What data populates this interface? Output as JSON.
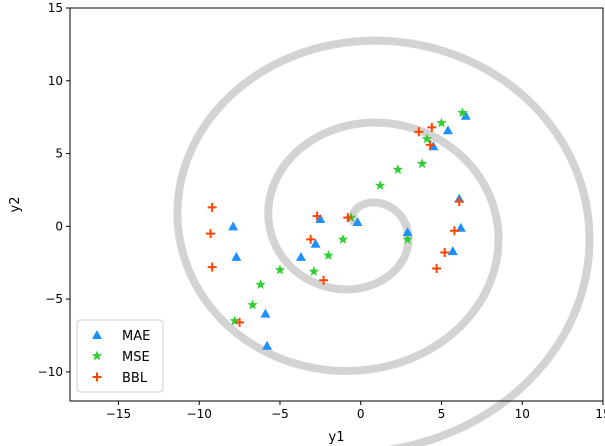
{
  "chart_data": {
    "type": "scatter",
    "title": "",
    "xlabel": "y1",
    "ylabel": "y2",
    "xlim": [
      -18,
      15
    ],
    "ylim": [
      -12,
      15
    ],
    "xticks": [
      -15,
      -10,
      -5,
      0,
      5,
      10,
      15
    ],
    "yticks": [
      -10,
      -5,
      0,
      5,
      10,
      15
    ],
    "xtick_labels": [
      "−15",
      "−10",
      "−5",
      "0",
      "5",
      "10",
      "15"
    ],
    "ytick_labels": [
      "−10",
      "−5",
      "0",
      "5",
      "10",
      "15"
    ],
    "grid": false,
    "legend_position": "bottom-left",
    "background_curve": {
      "type": "spiral",
      "color": "#d3d3d3",
      "description_of_shape": "Archimedean spiral r = 0.9*theta, outer end near (-15.7, 0)",
      "theta_range": [
        0.6,
        17.4
      ],
      "r_per_rad": 0.9
    },
    "series": [
      {
        "name": "MAE",
        "marker": "triangle",
        "color": "#1e90ff",
        "points": [
          [
            6.5,
            7.6
          ],
          [
            5.4,
            6.6
          ],
          [
            4.5,
            5.5
          ],
          [
            6.1,
            1.9
          ],
          [
            6.2,
            -0.1
          ],
          [
            5.7,
            -1.7
          ],
          [
            2.9,
            -0.4
          ],
          [
            -0.2,
            0.3
          ],
          [
            -2.5,
            0.5
          ],
          [
            -2.8,
            -1.2
          ],
          [
            -3.7,
            -2.1
          ],
          [
            -7.9,
            0.0
          ],
          [
            -7.7,
            -2.1
          ],
          [
            -5.9,
            -6.0
          ],
          [
            -5.8,
            -8.2
          ]
        ]
      },
      {
        "name": "MSE",
        "marker": "star",
        "color": "#32cd32",
        "points": [
          [
            6.3,
            7.8
          ],
          [
            5.0,
            7.1
          ],
          [
            4.1,
            6.0
          ],
          [
            3.8,
            4.3
          ],
          [
            2.3,
            3.9
          ],
          [
            1.2,
            2.8
          ],
          [
            -0.6,
            0.6
          ],
          [
            -1.1,
            -0.9
          ],
          [
            -2.0,
            -2.0
          ],
          [
            -2.9,
            -3.1
          ],
          [
            -5.0,
            -3.0
          ],
          [
            -6.2,
            -4.0
          ],
          [
            -6.7,
            -5.4
          ],
          [
            -7.8,
            -6.5
          ],
          [
            2.9,
            -0.9
          ]
        ]
      },
      {
        "name": "BBL",
        "marker": "plus",
        "color": "#ff4500",
        "points": [
          [
            3.6,
            6.5
          ],
          [
            4.4,
            6.8
          ],
          [
            4.3,
            5.6
          ],
          [
            6.1,
            1.7
          ],
          [
            5.8,
            -0.3
          ],
          [
            5.2,
            -1.8
          ],
          [
            4.7,
            -2.9
          ],
          [
            -0.8,
            0.6
          ],
          [
            -2.7,
            0.7
          ],
          [
            -3.1,
            -0.9
          ],
          [
            -2.3,
            -3.7
          ],
          [
            -9.2,
            1.3
          ],
          [
            -9.3,
            -0.5
          ],
          [
            -9.2,
            -2.8
          ],
          [
            -7.5,
            -6.6
          ]
        ]
      }
    ]
  }
}
